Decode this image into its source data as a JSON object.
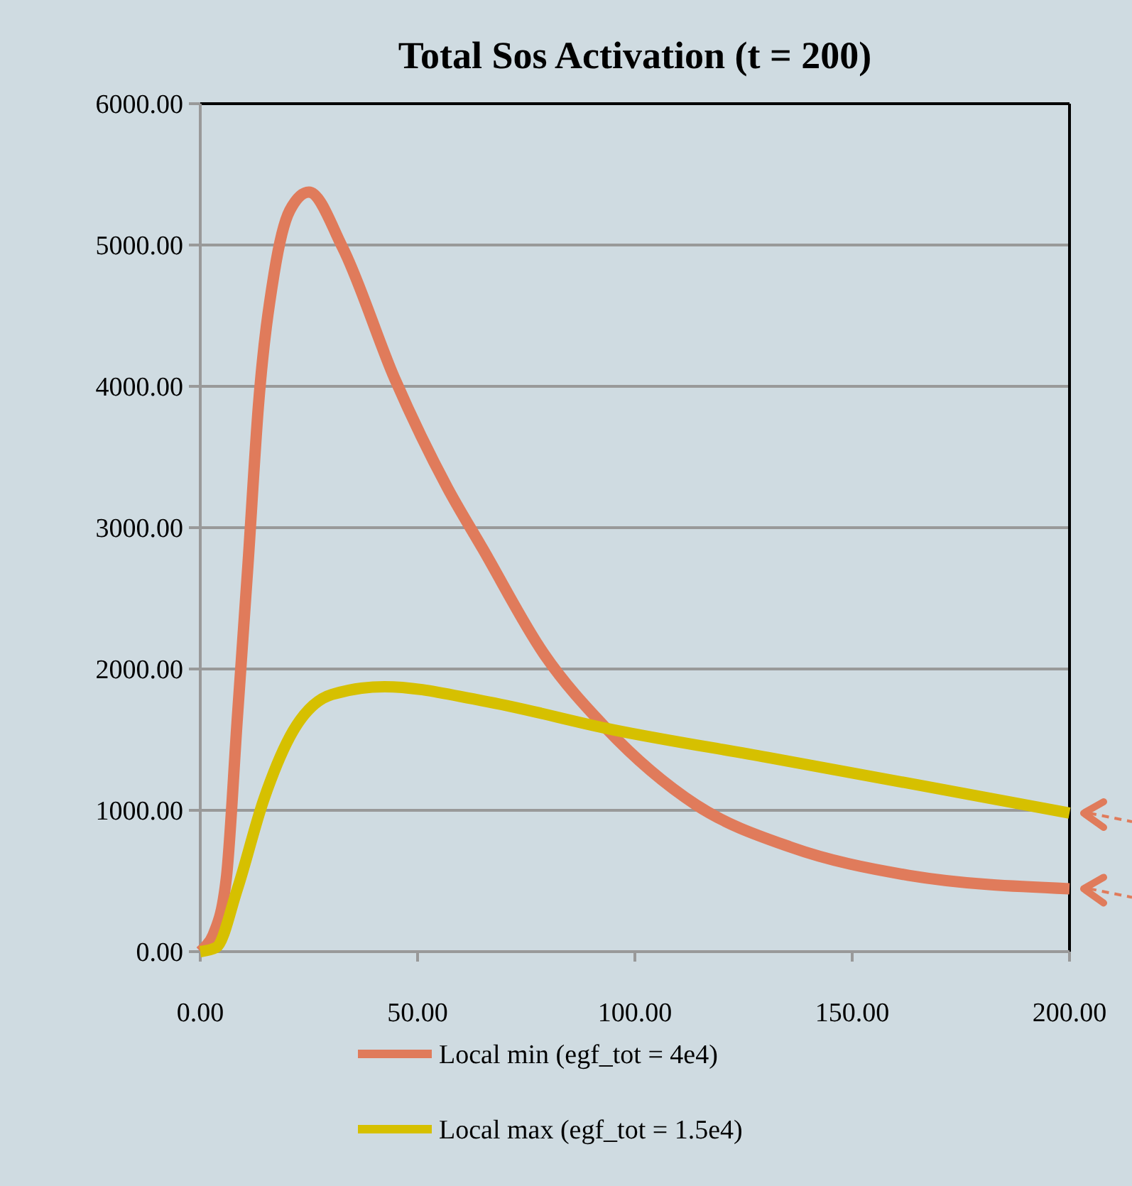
{
  "chart_data": {
    "type": "line",
    "title": "Total Sos Activation (t = 200)",
    "xlim": [
      0,
      200
    ],
    "xticks": [
      {
        "value": 0,
        "label": "0.00"
      },
      {
        "value": 50,
        "label": "50.00"
      },
      {
        "value": 100,
        "label": "100.00"
      },
      {
        "value": 150,
        "label": "150.00"
      },
      {
        "value": 200,
        "label": "200.00"
      }
    ],
    "ylim": [
      0,
      6000
    ],
    "yticks": [
      {
        "value": 0,
        "label": "0.00"
      },
      {
        "value": 1000,
        "label": "1000.00"
      },
      {
        "value": 2000,
        "label": "2000.00"
      },
      {
        "value": 3000,
        "label": "3000.00"
      },
      {
        "value": 4000,
        "label": "4000.00"
      },
      {
        "value": 5000,
        "label": "5000.00"
      },
      {
        "value": 6000,
        "label": "6000.00"
      }
    ],
    "grid": "y",
    "legend": "bottom",
    "marker": "none",
    "line_style": "solid",
    "series": [
      {
        "name": "Local min (egf_tot = 4e4)",
        "color": "#e07b5b",
        "x": [
          0,
          1,
          3,
          6,
          8.5,
          11,
          13.4,
          17,
          20.6,
          25,
          32.7,
          44.8,
          56.9,
          65,
          79,
          93.4,
          114,
          135.8,
          163,
          200
        ],
        "values": [
          0,
          30,
          120,
          520,
          1640,
          2750,
          3870,
          4800,
          5245,
          5375,
          4985,
          4050,
          3280,
          2850,
          2110,
          1580,
          1040,
          740,
          540,
          445
        ]
      },
      {
        "name": "Local max (egf_tot = 1.5e4)",
        "color": "#d6c000",
        "x": [
          0,
          3.7,
          8.5,
          14.6,
          20.6,
          30.3,
          42.4,
          65,
          95,
          130.4,
          165,
          200
        ],
        "values": [
          0,
          30,
          440,
          1075,
          1520,
          1820,
          1875,
          1775,
          1570,
          1375,
          1180,
          980
        ]
      }
    ]
  }
}
